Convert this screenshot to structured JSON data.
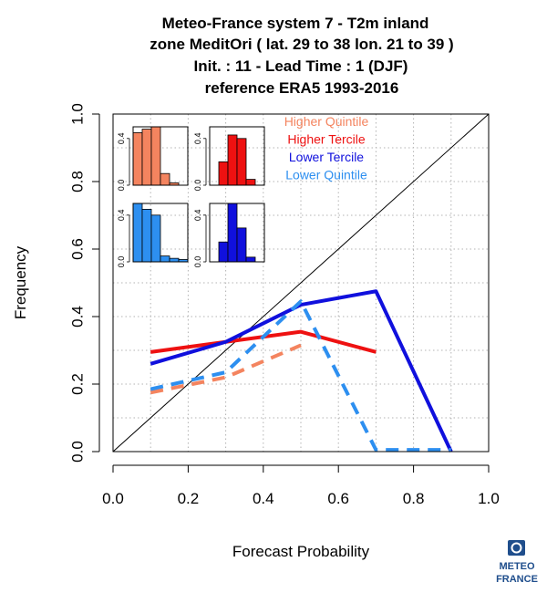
{
  "colors": {
    "higher_quintile": "#f4845f",
    "higher_tercile": "#ee1111",
    "lower_tercile": "#1010dd",
    "lower_quintile": "#2d8ff0",
    "diagonal": "#000000",
    "grid": "#b3b3b3",
    "logo": "#1f4e8c"
  },
  "logo": {
    "line1": "METEO",
    "line2": "FRANCE",
    "icon": "meteo-france-logo-icon"
  },
  "chart_data": {
    "type": "line",
    "title": [
      "Meteo-France system 7  -  T2m inland",
      "zone MeditOri ( lat. 29 to 38    lon. 21 to 39 )",
      "Init. : 11  - Lead Time : 1 (DJF)",
      "reference ERA5 1993-2016"
    ],
    "xlabel": "Forecast Probability",
    "ylabel": "Frequency",
    "xlim": [
      0,
      1
    ],
    "ylim": [
      0,
      1
    ],
    "x_ticks": [
      "0.0",
      "0.2",
      "0.4",
      "0.6",
      "0.8",
      "1.0"
    ],
    "y_ticks": [
      "0.0",
      "0.2",
      "0.4",
      "0.6",
      "0.8",
      "1.0"
    ],
    "grid": true,
    "legend_position": "top-right",
    "diagonal": true,
    "series": [
      {
        "name": "Higher Quintile",
        "key": "higher_quintile",
        "dashed": true,
        "x": [
          0.1,
          0.3,
          0.5
        ],
        "y": [
          0.175,
          0.22,
          0.315
        ]
      },
      {
        "name": "Higher Tercile",
        "key": "higher_tercile",
        "dashed": false,
        "x": [
          0.1,
          0.3,
          0.5,
          0.7
        ],
        "y": [
          0.295,
          0.325,
          0.355,
          0.295
        ]
      },
      {
        "name": "Lower Tercile",
        "key": "lower_tercile",
        "dashed": false,
        "x": [
          0.1,
          0.3,
          0.5,
          0.7,
          0.9
        ],
        "y": [
          0.26,
          0.325,
          0.435,
          0.475,
          0.0
        ]
      },
      {
        "name": "Lower Quintile",
        "key": "lower_quintile",
        "dashed": true,
        "x": [
          0.1,
          0.3,
          0.5,
          0.7,
          0.9
        ],
        "y": [
          0.185,
          0.235,
          0.445,
          0.005,
          0.005
        ]
      }
    ],
    "insets": {
      "y_ticks": [
        "0.0",
        "0.4"
      ],
      "ylim": [
        0,
        0.5
      ],
      "histograms": [
        {
          "key": "higher_quintile",
          "values": [
            0.45,
            0.48,
            0.5,
            0.1,
            0.02,
            0.0
          ]
        },
        {
          "key": "higher_tercile",
          "values": [
            0.0,
            0.2,
            0.43,
            0.4,
            0.05,
            0.0
          ]
        },
        {
          "key": "lower_quintile",
          "values": [
            0.5,
            0.45,
            0.4,
            0.05,
            0.03,
            0.02
          ]
        },
        {
          "key": "lower_tercile",
          "values": [
            0.0,
            0.17,
            0.5,
            0.29,
            0.04,
            0.0
          ]
        }
      ]
    }
  }
}
